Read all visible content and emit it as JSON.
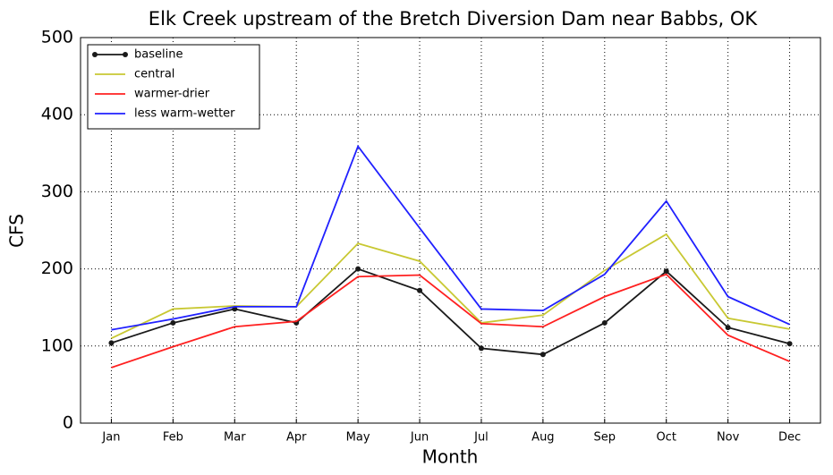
{
  "chart_data": {
    "type": "line",
    "title": "Elk Creek upstream of the Bretch Diversion Dam near Babbs, OK",
    "xlabel": "Month",
    "ylabel": "CFS",
    "categories": [
      "Jan",
      "Feb",
      "Mar",
      "Apr",
      "May",
      "Jun",
      "Jul",
      "Aug",
      "Sep",
      "Oct",
      "Nov",
      "Dec"
    ],
    "series": [
      {
        "name": "baseline",
        "color": "#1a1a1a",
        "markers": true,
        "values": [
          104,
          130,
          148,
          130,
          200,
          172,
          97,
          89,
          130,
          197,
          124,
          103
        ]
      },
      {
        "name": "central",
        "color": "#c8c832",
        "values": [
          110,
          148,
          152,
          151,
          233,
          210,
          130,
          140,
          198,
          245,
          136,
          122
        ]
      },
      {
        "name": "warmer-drier",
        "color": "#ff2020",
        "values": [
          72,
          99,
          125,
          132,
          190,
          192,
          129,
          125,
          164,
          193,
          114,
          80
        ]
      },
      {
        "name": "less warm-wetter",
        "color": "#2020ff",
        "values": [
          121,
          135,
          151,
          151,
          359,
          253,
          148,
          146,
          193,
          288,
          164,
          128
        ]
      }
    ],
    "ylim": [
      0,
      500
    ],
    "yticks": [
      0,
      100,
      200,
      300,
      400,
      500
    ],
    "grid": true,
    "legend": "upper left"
  }
}
